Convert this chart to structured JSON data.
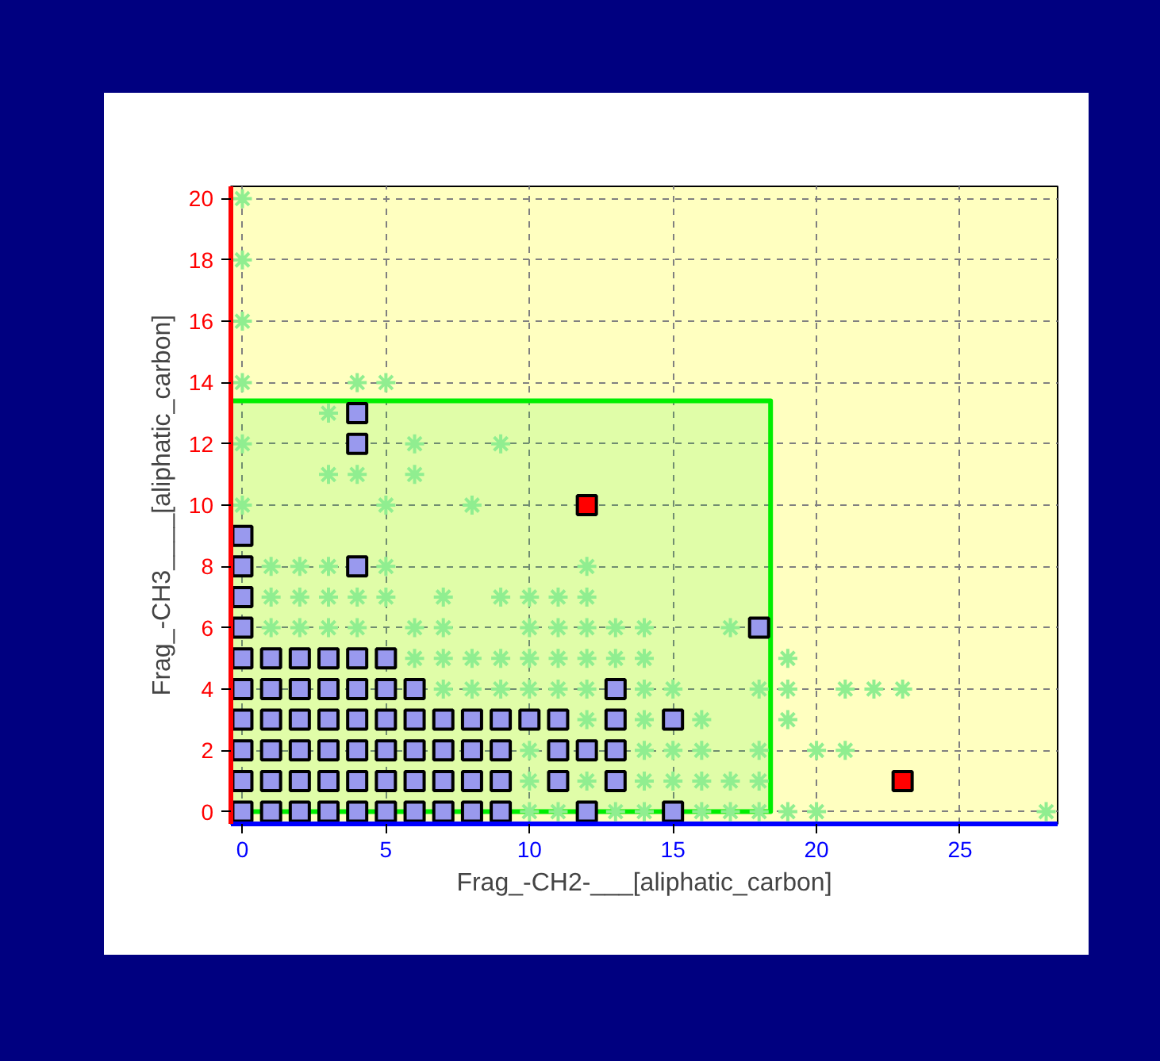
{
  "chart_data": {
    "type": "scatter",
    "xlabel": "Frag_-CH2-___[aliphatic_carbon]",
    "ylabel": "Frag_-CH3____[aliphatic_carbon]",
    "xlim": [
      -0.4,
      28.4
    ],
    "ylim": [
      -0.4,
      20.4
    ],
    "xticks": [
      0,
      5,
      10,
      15,
      20,
      25
    ],
    "yticks": [
      0,
      2,
      4,
      6,
      8,
      10,
      12,
      14,
      16,
      18,
      20
    ],
    "grid": true,
    "series": [
      {
        "type": "area",
        "color": "#00ee00",
        "x": [
          -0.4,
          2,
          5,
          10,
          15,
          18.4
        ],
        "values": [
          13.4,
          13.4,
          13.4,
          13.4,
          13.4,
          13.4
        ]
      },
      {
        "marker": "cross",
        "color": "#90ee90",
        "x": [
          0,
          0,
          0,
          0,
          4,
          5,
          3,
          0,
          6,
          9,
          3,
          4,
          6,
          0,
          5,
          8,
          1,
          2,
          3,
          5,
          12,
          1,
          2,
          3,
          4,
          5,
          7,
          9,
          10,
          11,
          12,
          1,
          2,
          3,
          4,
          6,
          7,
          10,
          11,
          12,
          13,
          14,
          17,
          6,
          7,
          8,
          9,
          10,
          11,
          12,
          13,
          14,
          19,
          7,
          8,
          9,
          10,
          11,
          12,
          14,
          15,
          18,
          19,
          21,
          22,
          23,
          12,
          14,
          16,
          19,
          10,
          14,
          15,
          16,
          18,
          20,
          21,
          10,
          12,
          14,
          15,
          16,
          17,
          18,
          10,
          11,
          13,
          14,
          16,
          17,
          18,
          19,
          20,
          28
        ],
        "values": [
          20,
          18,
          16,
          14,
          14,
          14,
          13,
          12,
          12,
          12,
          11,
          11,
          11,
          10,
          10,
          10,
          8,
          8,
          8,
          8,
          8,
          7,
          7,
          7,
          7,
          7,
          7,
          7,
          7,
          7,
          7,
          6,
          6,
          6,
          6,
          6,
          6,
          6,
          6,
          6,
          6,
          6,
          6,
          5,
          5,
          5,
          5,
          5,
          5,
          5,
          5,
          5,
          5,
          4,
          4,
          4,
          4,
          4,
          4,
          4,
          4,
          4,
          4,
          4,
          4,
          4,
          3,
          3,
          3,
          3,
          2,
          2,
          2,
          2,
          2,
          2,
          2,
          1,
          1,
          1,
          1,
          1,
          1,
          1,
          0,
          0,
          0,
          0,
          0,
          0,
          0,
          0,
          0,
          0
        ]
      },
      {
        "marker": "square",
        "color": "#9999ee",
        "x": [
          0,
          1,
          2,
          3,
          4,
          5,
          6,
          7,
          8,
          9,
          12,
          15,
          0,
          1,
          2,
          3,
          4,
          5,
          6,
          7,
          8,
          9,
          11,
          13,
          0,
          1,
          2,
          3,
          4,
          5,
          6,
          7,
          8,
          9,
          11,
          12,
          13,
          0,
          1,
          2,
          3,
          4,
          5,
          6,
          7,
          8,
          9,
          10,
          11,
          13,
          15,
          0,
          1,
          2,
          3,
          4,
          5,
          6,
          13,
          0,
          1,
          2,
          3,
          4,
          5,
          0,
          18,
          0,
          0,
          4,
          0,
          4,
          4
        ],
        "values": [
          0,
          0,
          0,
          0,
          0,
          0,
          0,
          0,
          0,
          0,
          0,
          0,
          1,
          1,
          1,
          1,
          1,
          1,
          1,
          1,
          1,
          1,
          1,
          1,
          2,
          2,
          2,
          2,
          2,
          2,
          2,
          2,
          2,
          2,
          2,
          2,
          2,
          3,
          3,
          3,
          3,
          3,
          3,
          3,
          3,
          3,
          3,
          3,
          3,
          3,
          3,
          4,
          4,
          4,
          4,
          4,
          4,
          4,
          4,
          5,
          5,
          5,
          5,
          5,
          5,
          6,
          6,
          7,
          8,
          8,
          9,
          12,
          13
        ]
      },
      {
        "marker": "square",
        "color": "#ff0000",
        "x": [
          12,
          23
        ],
        "values": [
          10,
          1
        ]
      }
    ]
  }
}
